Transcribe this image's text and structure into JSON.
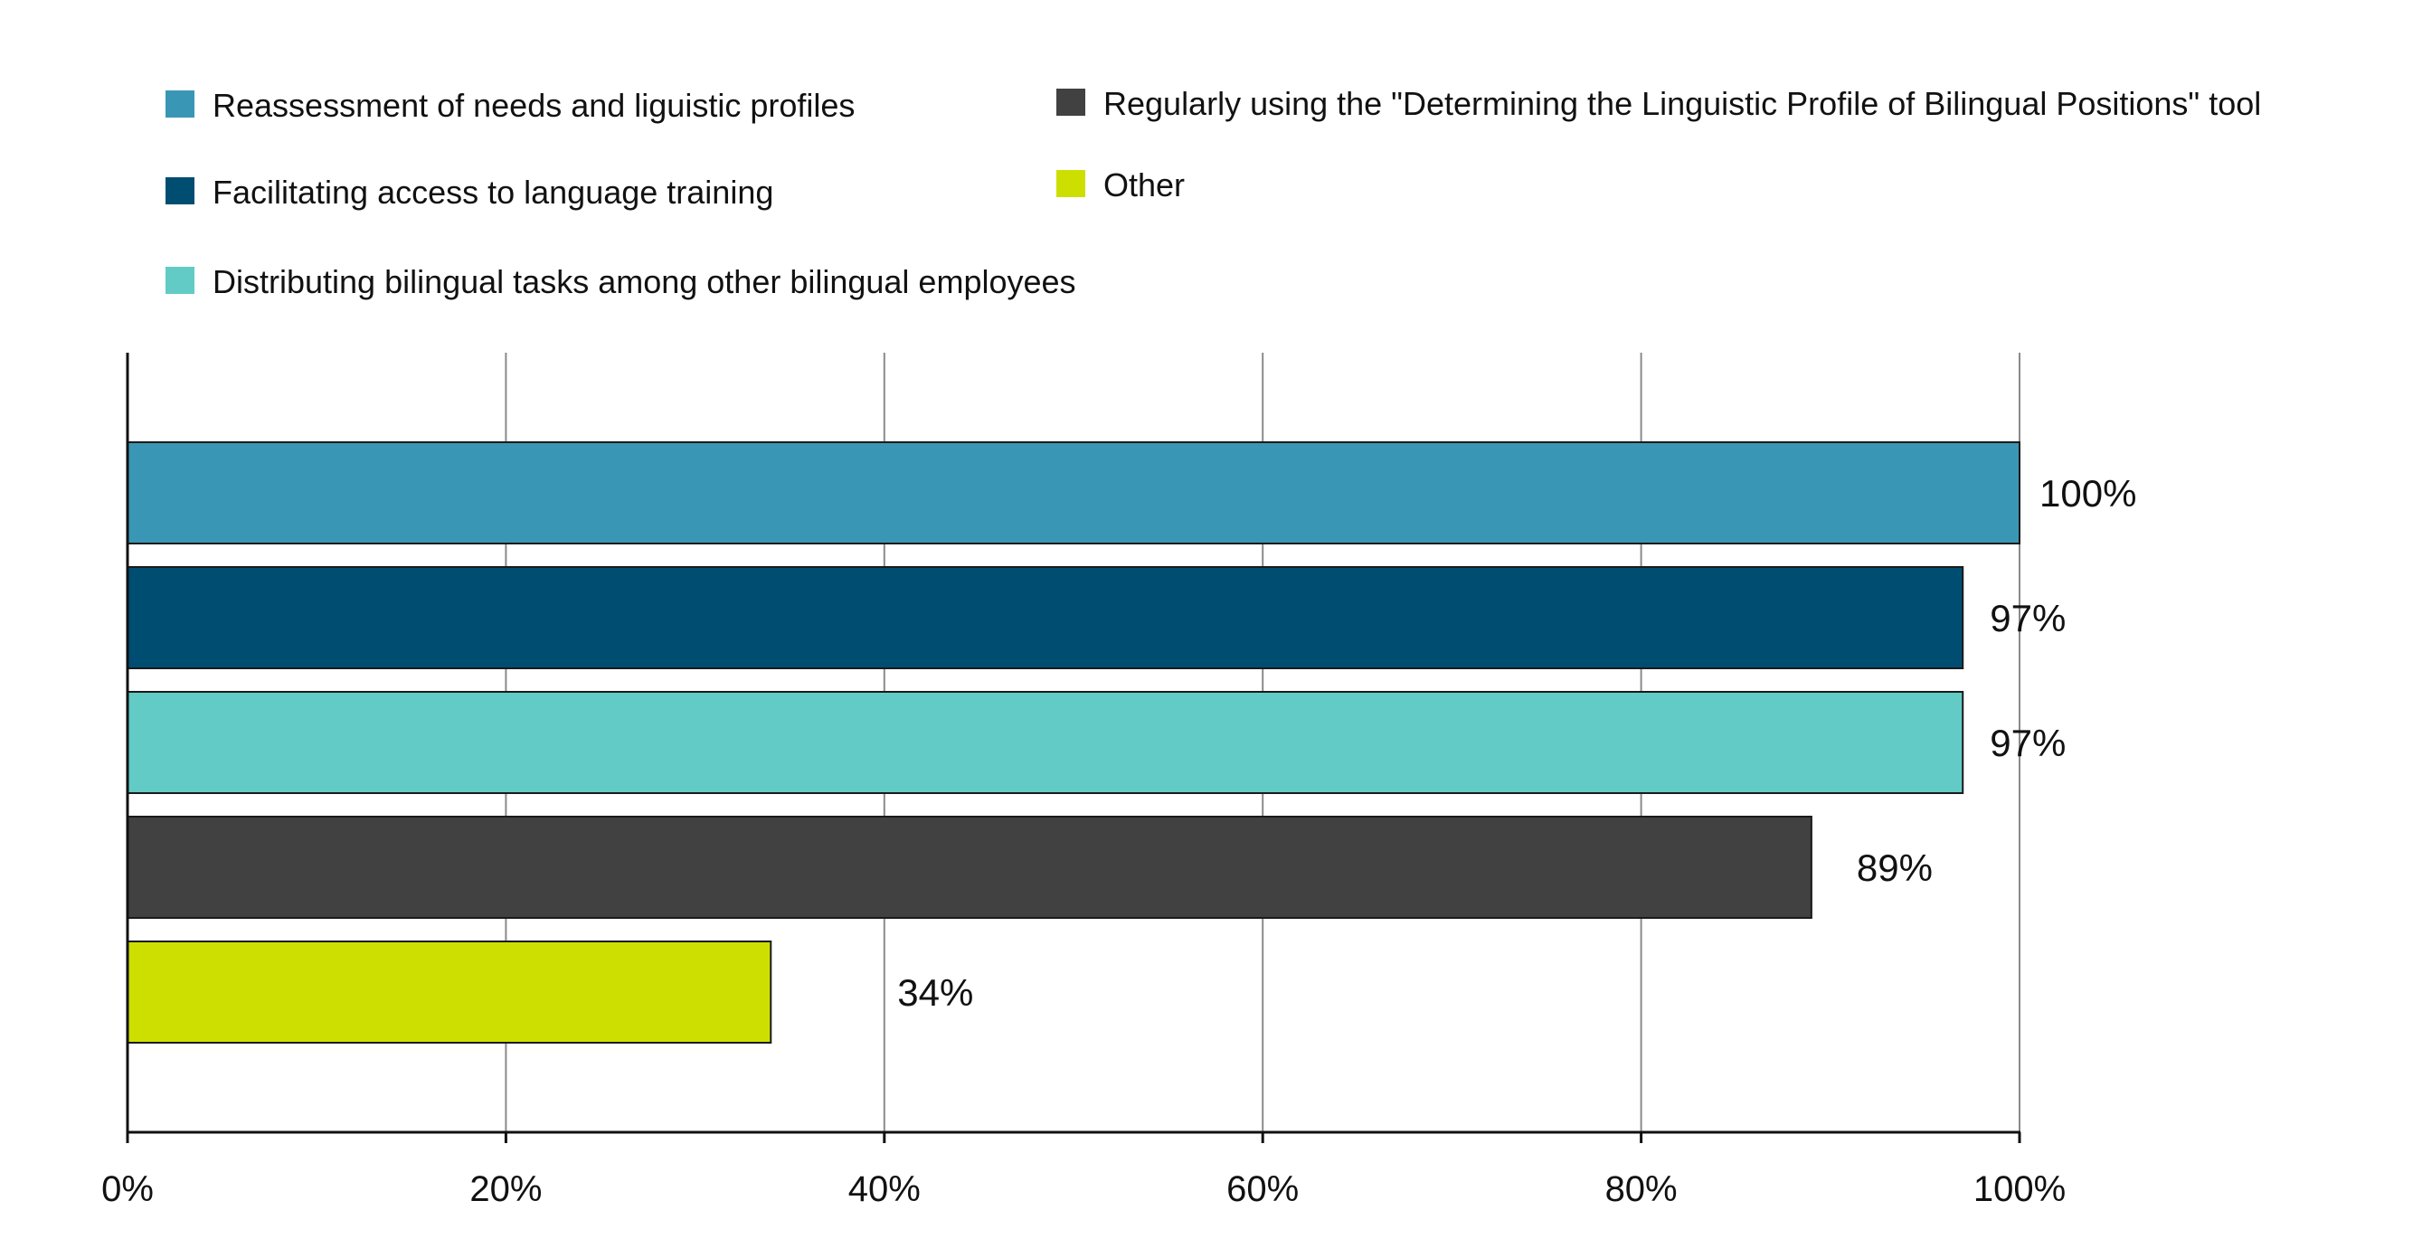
{
  "chart_data": {
    "type": "bar",
    "orientation": "horizontal",
    "title": "",
    "xlabel": "",
    "ylabel": "",
    "xlim": [
      0,
      100
    ],
    "x_ticks": [
      "0%",
      "20%",
      "40%",
      "60%",
      "80%",
      "100%"
    ],
    "grid": true,
    "legend_position": "top",
    "series": [
      {
        "name": "Reassessment of needs and liguistic profiles",
        "value": 100,
        "label": "100%",
        "color": "#3A96B5"
      },
      {
        "name": "Facilitating access to language training",
        "value": 97,
        "label": "97%",
        "color": "#004D72"
      },
      {
        "name": "Distributing bilingual tasks among other bilingual employees",
        "value": 97,
        "label": "97%",
        "color": "#62CBC6"
      },
      {
        "name": "Regularly using the \"Determining the Linguistic Profile of Bilingual Positions\" tool",
        "value": 89,
        "label": "89%",
        "color": "#414141"
      },
      {
        "name": "Other",
        "value": 34,
        "label": "34%",
        "color": "#CDDF00"
      }
    ]
  }
}
